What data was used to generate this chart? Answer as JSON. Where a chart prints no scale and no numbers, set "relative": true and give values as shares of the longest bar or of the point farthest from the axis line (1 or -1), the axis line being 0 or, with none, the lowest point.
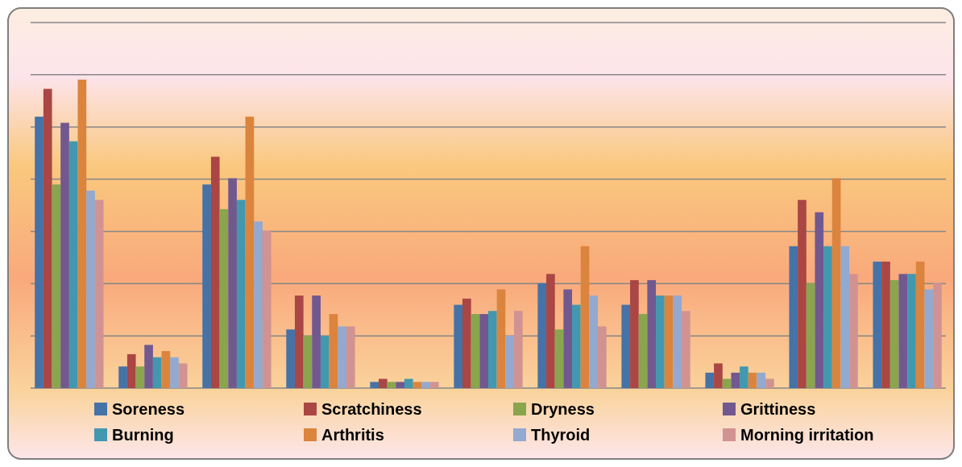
{
  "chart_data": {
    "type": "bar",
    "relative": true,
    "grid": "y",
    "legend": "bottom",
    "categories": [
      null,
      null,
      null,
      null,
      null,
      null,
      null,
      null,
      null,
      null,
      null
    ],
    "series": [
      {
        "name": "Soreness",
        "color": "#4572a7",
        "values": [
          0.88,
          0.07,
          0.66,
          0.19,
          0.02,
          0.27,
          0.34,
          0.27,
          0.05,
          0.46,
          0.41
        ]
      },
      {
        "name": "Scratchiness",
        "color": "#aa4643",
        "values": [
          0.97,
          0.11,
          0.75,
          0.3,
          0.03,
          0.29,
          0.37,
          0.35,
          0.08,
          0.61,
          0.41
        ]
      },
      {
        "name": "Dryness",
        "color": "#89a54e",
        "values": [
          0.66,
          0.07,
          0.58,
          0.17,
          0.02,
          0.24,
          0.19,
          0.24,
          0.03,
          0.34,
          0.35
        ]
      },
      {
        "name": "Grittiness",
        "color": "#71588f",
        "values": [
          0.86,
          0.14,
          0.68,
          0.3,
          0.02,
          0.24,
          0.32,
          0.35,
          0.05,
          0.57,
          0.37
        ]
      },
      {
        "name": "Burning",
        "color": "#4198af",
        "values": [
          0.8,
          0.1,
          0.61,
          0.17,
          0.03,
          0.25,
          0.27,
          0.3,
          0.07,
          0.46,
          0.37
        ]
      },
      {
        "name": "Arthritis",
        "color": "#db843d",
        "values": [
          1,
          0.12,
          0.88,
          0.24,
          0.02,
          0.32,
          0.46,
          0.3,
          0.05,
          0.68,
          0.41
        ]
      },
      {
        "name": "Thyroid",
        "color": "#93a9cf",
        "values": [
          0.64,
          0.1,
          0.54,
          0.2,
          0.02,
          0.17,
          0.3,
          0.3,
          0.05,
          0.46,
          0.32
        ]
      },
      {
        "name": "Morning irritation",
        "color": "#d19392",
        "values": [
          0.61,
          0.08,
          0.51,
          0.2,
          0.02,
          0.25,
          0.2,
          0.25,
          0.03,
          0.37,
          0.34
        ]
      }
    ]
  }
}
